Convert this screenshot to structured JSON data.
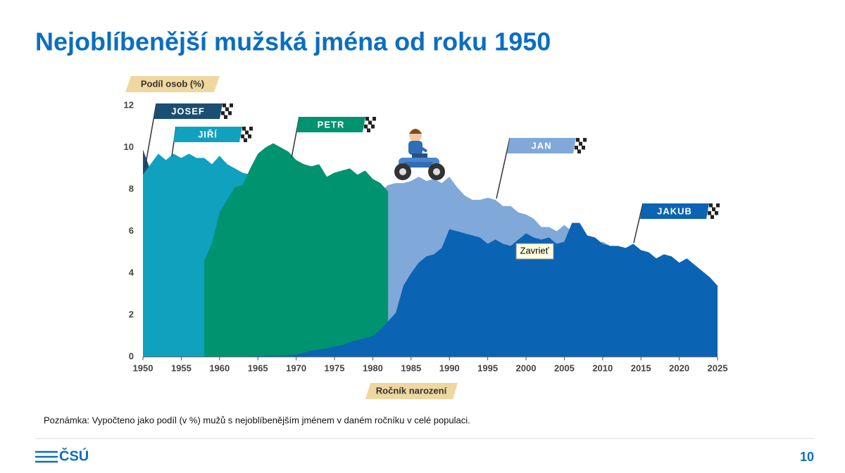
{
  "header": {
    "title": "Nejoblíbenější mužská jména od roku 1950"
  },
  "chart_data": {
    "type": "area",
    "ylabel": "Podíl osob (%)",
    "xlabel": "Ročník narození",
    "xlim": [
      1950,
      2025
    ],
    "xticks": [
      1950,
      1955,
      1960,
      1965,
      1970,
      1975,
      1980,
      1985,
      1990,
      1995,
      2000,
      2005,
      2010,
      2015,
      2020,
      2025
    ],
    "ylim": [
      0,
      12
    ],
    "yticks": [
      0,
      2,
      4,
      6,
      8,
      10,
      12
    ],
    "grid": true,
    "series": [
      {
        "name": "JOSEF",
        "color": "#1b4f72",
        "x": [
          1950,
          1951
        ],
        "values": [
          9.9,
          8.9
        ]
      },
      {
        "name": "JAN",
        "color": "#80a8d9",
        "x": [
          1950,
          1951,
          1952,
          1953,
          1954,
          1955,
          1956,
          1957,
          1958,
          1959,
          1960,
          1961,
          1962,
          1963,
          1964,
          1965,
          1966,
          1967,
          1968,
          1969,
          1970,
          1971,
          1972,
          1973,
          1974,
          1975,
          1976,
          1977,
          1978,
          1979,
          1980,
          1981,
          1982,
          1983,
          1984,
          1985,
          1986,
          1987,
          1988,
          1989,
          1990,
          1991,
          1992,
          1993,
          1994,
          1995,
          1996,
          1997,
          1998,
          1999,
          2000,
          2001,
          2002,
          2003,
          2004,
          2005,
          2006,
          2007,
          2008,
          2009,
          2010,
          2011
        ],
        "values": [
          6.3,
          5.9,
          5.7,
          5.6,
          5.4,
          5.3,
          5.2,
          5.1,
          4.6,
          4.8,
          4.4,
          4.1,
          4.2,
          4.0,
          3.9,
          3.9,
          3.9,
          3.8,
          4.0,
          4.1,
          4.3,
          4.4,
          4.5,
          4.7,
          5.0,
          5.4,
          5.7,
          6.2,
          6.6,
          7.1,
          7.5,
          7.9,
          8.2,
          8.3,
          8.3,
          8.4,
          8.6,
          8.4,
          8.5,
          8.3,
          8.6,
          8.1,
          7.7,
          7.5,
          7.5,
          7.6,
          7.5,
          7.2,
          7.2,
          6.9,
          6.8,
          6.6,
          6.2,
          6.2,
          6.0,
          6.3,
          6.0,
          5.8,
          5.6,
          5.4,
          5.5,
          5.3
        ]
      },
      {
        "name": "JIŘÍ",
        "color": "#0fa1be",
        "x": [
          1950,
          1951,
          1952,
          1953,
          1954,
          1955,
          1956,
          1957,
          1958,
          1959,
          1960,
          1961,
          1962,
          1963,
          1964
        ],
        "values": [
          8.7,
          9.2,
          9.7,
          9.4,
          9.7,
          9.5,
          9.7,
          9.5,
          9.5,
          9.2,
          9.6,
          9.2,
          9.0,
          8.8,
          8.7
        ]
      },
      {
        "name": "PETR",
        "color": "#00936f",
        "x": [
          1958,
          1959,
          1960,
          1961,
          1962,
          1963,
          1964,
          1965,
          1966,
          1967,
          1968,
          1969,
          1970,
          1971,
          1972,
          1973,
          1974,
          1975,
          1976,
          1977,
          1978,
          1979,
          1980,
          1981,
          1982
        ],
        "values": [
          4.6,
          5.4,
          6.9,
          7.5,
          8.1,
          8.2,
          9.0,
          9.7,
          10.0,
          10.2,
          10.0,
          9.8,
          9.4,
          9.2,
          9.1,
          9.2,
          8.6,
          8.8,
          8.9,
          9.0,
          8.7,
          8.9,
          8.5,
          8.3,
          7.9
        ]
      },
      {
        "name": "JAKUB",
        "color": "#0b63b4",
        "x": [
          1960,
          1965,
          1970,
          1971,
          1972,
          1973,
          1974,
          1975,
          1976,
          1977,
          1978,
          1979,
          1980,
          1981,
          1982,
          1983,
          1984,
          1985,
          1986,
          1987,
          1988,
          1989,
          1990,
          1991,
          1992,
          1993,
          1994,
          1995,
          1996,
          1997,
          1998,
          1999,
          2000,
          2001,
          2002,
          2003,
          2004,
          2005,
          2006,
          2007,
          2008,
          2009,
          2010,
          2011,
          2012,
          2013,
          2014,
          2015,
          2016,
          2017,
          2018,
          2019,
          2020,
          2021,
          2022,
          2023,
          2024,
          2025
        ],
        "values": [
          0,
          0.03,
          0.1,
          0.2,
          0.3,
          0.35,
          0.4,
          0.5,
          0.55,
          0.7,
          0.8,
          0.9,
          1.0,
          1.3,
          1.7,
          2.1,
          3.4,
          4.0,
          4.5,
          4.8,
          4.9,
          5.2,
          6.1,
          6.0,
          5.9,
          5.8,
          5.7,
          5.4,
          5.6,
          5.4,
          5.3,
          5.6,
          5.9,
          5.7,
          5.6,
          5.7,
          5.4,
          5.5,
          6.4,
          6.4,
          5.8,
          5.7,
          5.4,
          5.3,
          5.3,
          5.2,
          5.4,
          5.1,
          5.0,
          4.7,
          4.9,
          4.8,
          4.5,
          4.7,
          4.4,
          4.1,
          3.8,
          3.4
        ]
      }
    ]
  },
  "tooltip": "Zavrieť",
  "note": "Poznámka: Vypočteno jako podíl (v %) mužů s nejoblíbenějším jménem v daném ročníku v celé populaci.",
  "footer": {
    "logo": "ČSÚ",
    "page": "10"
  }
}
